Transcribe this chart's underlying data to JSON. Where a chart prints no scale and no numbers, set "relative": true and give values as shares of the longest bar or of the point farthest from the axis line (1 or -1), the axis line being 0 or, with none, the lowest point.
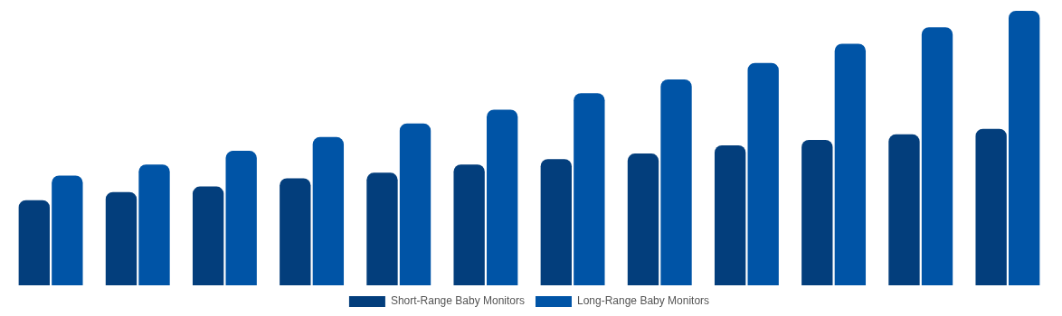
{
  "chart_data": {
    "type": "bar",
    "relative": true,
    "legend": "bottom",
    "categories": [
      null,
      null,
      null,
      null,
      null,
      null,
      null,
      null,
      null,
      null,
      null,
      null
    ],
    "series": [
      {
        "name": "Short-Range Baby Monitors",
        "color": "#033e7c",
        "values": [
          0.31,
          0.34,
          0.36,
          0.39,
          0.41,
          0.44,
          0.46,
          0.48,
          0.51,
          0.53,
          0.55,
          0.57
        ]
      },
      {
        "name": "Long-Range Baby Monitors",
        "color": "#0054a6",
        "values": [
          0.4,
          0.44,
          0.49,
          0.54,
          0.59,
          0.64,
          0.7,
          0.75,
          0.81,
          0.88,
          0.94,
          1
        ]
      }
    ]
  }
}
